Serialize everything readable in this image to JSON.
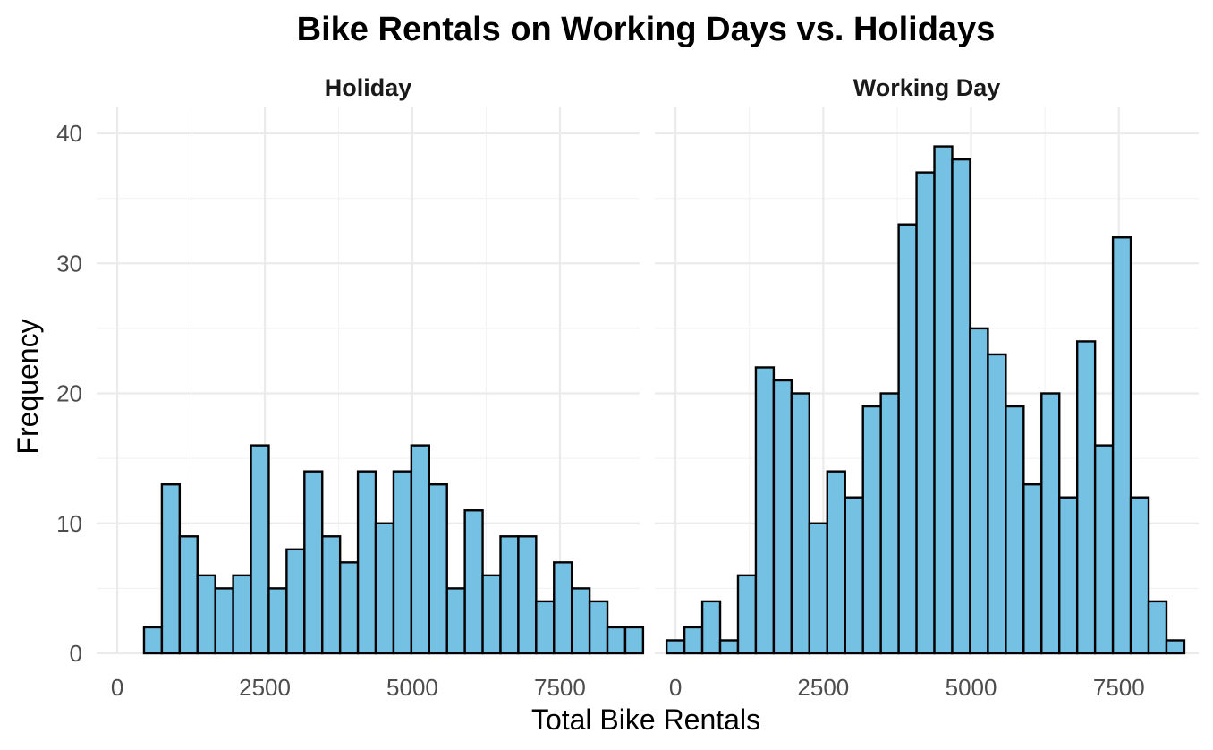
{
  "chart_data": {
    "type": "bar",
    "title": "Bike Rentals on Working Days vs. Holidays",
    "xlabel": "Total Bike Rentals",
    "ylabel": "Frequency",
    "ylim": [
      0,
      42
    ],
    "xlim": [
      -350,
      8850
    ],
    "x_ticks": [
      "0",
      "2500",
      "5000",
      "7500"
    ],
    "y_ticks": [
      "0",
      "10",
      "20",
      "30",
      "40"
    ],
    "bin_width": 302,
    "bar_color": "#75C1E3",
    "bar_edge_color": "#000000",
    "panels": [
      {
        "name": "Holiday",
        "bin_start": -151,
        "counts": [
          0,
          0,
          2,
          13,
          9,
          6,
          5,
          6,
          16,
          5,
          8,
          14,
          9,
          7,
          14,
          10,
          14,
          16,
          13,
          5,
          11,
          6,
          9,
          9,
          4,
          7,
          5,
          4,
          2,
          2
        ]
      },
      {
        "name": "Working Day",
        "bin_start": -151,
        "counts": [
          1,
          2,
          4,
          1,
          6,
          22,
          21,
          20,
          10,
          14,
          12,
          19,
          20,
          33,
          37,
          39,
          38,
          25,
          23,
          19,
          13,
          20,
          12,
          24,
          16,
          32,
          12,
          4,
          1,
          0
        ]
      }
    ]
  }
}
